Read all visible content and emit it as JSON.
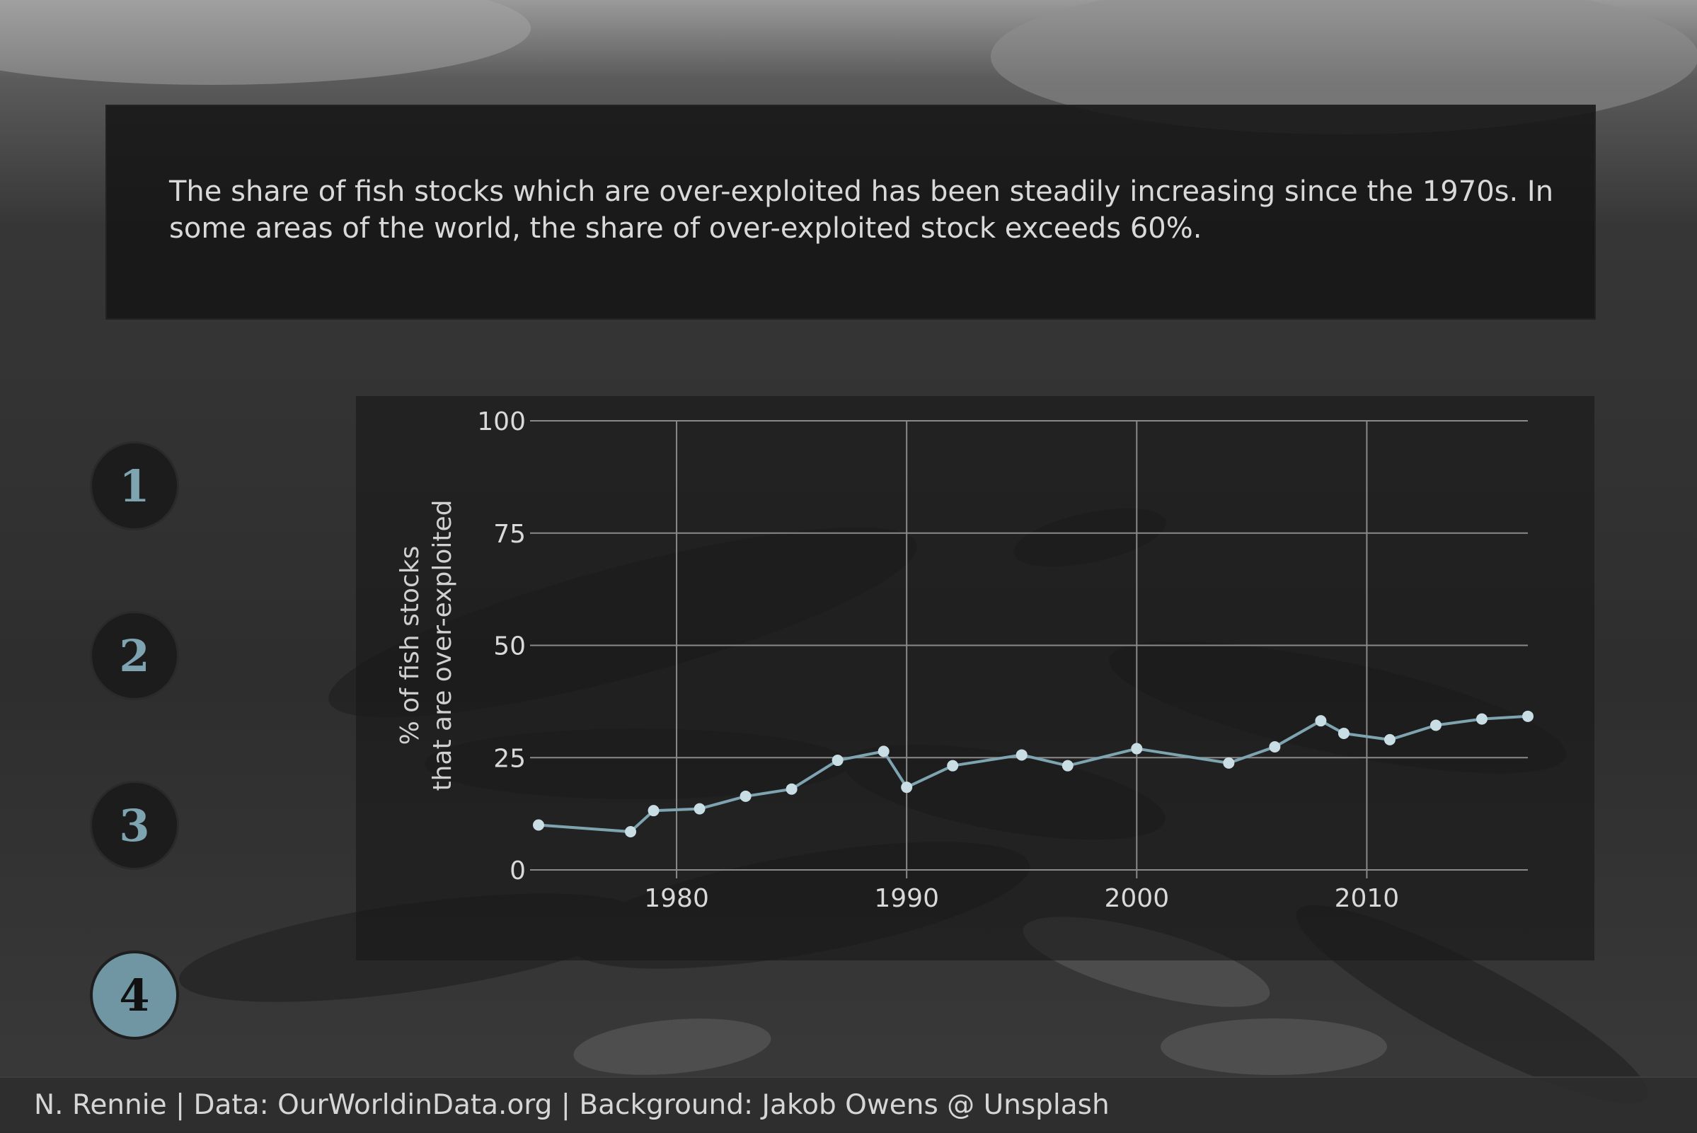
{
  "description": "The share of fish stocks which are over-exploited has been steadily increasing since the 1970s. In some areas of the world, the share of over-exploited stock exceeds 60%.",
  "nav": {
    "steps": [
      "1",
      "2",
      "3",
      "4"
    ],
    "active": 4
  },
  "footer": {
    "caption": "N. Rennie | Data: OurWorldinData.org | Background: Jakob Owens @ Unsplash"
  },
  "colors": {
    "line": "#7fa4b1",
    "point": "#c8dde4",
    "grid": "#8a8a8a",
    "text": "#d9d9d9",
    "nav_active": "#6f96a2"
  },
  "chart_data": {
    "type": "line",
    "title": "",
    "xlabel": "",
    "ylabel": "% of fish stocks that are over-exploited",
    "xlim": [
      1974,
      2017
    ],
    "ylim": [
      0,
      100
    ],
    "xticks": [
      1980,
      1990,
      2000,
      2010
    ],
    "yticks": [
      0,
      25,
      50,
      75,
      100
    ],
    "grid": true,
    "series": [
      {
        "x": [
          1974,
          1978,
          1979,
          1981,
          1983,
          1985,
          1987,
          1989,
          1990,
          1992,
          1995,
          1997,
          2000,
          2004,
          2006,
          2008,
          2009,
          2011,
          2013,
          2015,
          2017
        ],
        "values": [
          10.0,
          8.5,
          13.2,
          13.6,
          16.4,
          18.0,
          24.4,
          26.4,
          18.4,
          23.2,
          25.6,
          23.2,
          27.0,
          23.8,
          27.4,
          33.2,
          30.4,
          29.0,
          32.2,
          33.6,
          34.2
        ]
      }
    ]
  }
}
